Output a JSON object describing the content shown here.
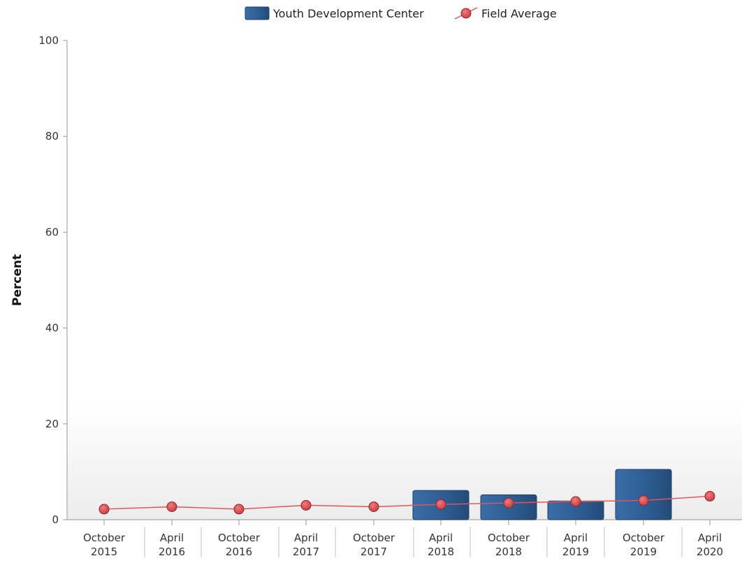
{
  "chart_data": {
    "type": "bar",
    "title": "",
    "xlabel": "",
    "ylabel": "Percent",
    "ylim": [
      0,
      100
    ],
    "yticks": [
      0,
      20,
      40,
      60,
      80,
      100
    ],
    "grid": false,
    "legend_position": "top-center",
    "categories": [
      [
        "October",
        "2015"
      ],
      [
        "April",
        "2016"
      ],
      [
        "October",
        "2016"
      ],
      [
        "April",
        "2017"
      ],
      [
        "October",
        "2017"
      ],
      [
        "April",
        "2018"
      ],
      [
        "October",
        "2018"
      ],
      [
        "April",
        "2019"
      ],
      [
        "October",
        "2019"
      ],
      [
        "April",
        "2020"
      ]
    ],
    "series": [
      {
        "name": "Youth Development Center",
        "type": "bar",
        "color": "#2e5d92",
        "values": [
          null,
          null,
          null,
          null,
          null,
          6.1,
          5.2,
          3.9,
          10.5,
          null
        ]
      },
      {
        "name": "Field Average",
        "type": "line",
        "color": "#e0565b",
        "marker_color": "#d6474c",
        "values": [
          2.2,
          2.7,
          2.2,
          3.0,
          2.7,
          3.2,
          3.5,
          3.8,
          4.0,
          4.9
        ]
      }
    ]
  }
}
